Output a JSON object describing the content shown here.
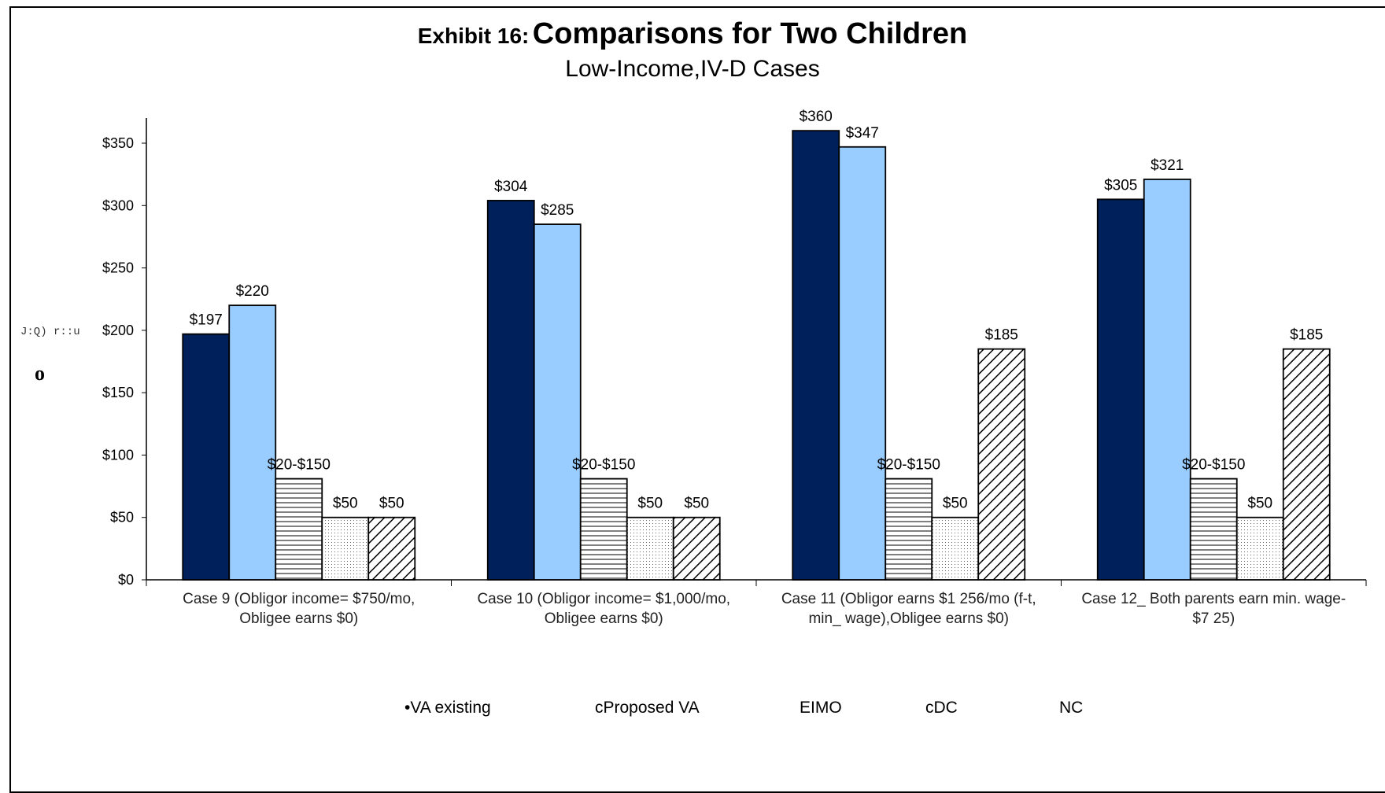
{
  "chart_data": {
    "type": "bar",
    "title_prefix": "Exhibit 16:",
    "title": "Comparisons for Two Children",
    "subtitle": "Low-Income,IV-D Cases",
    "ylabel_fragment": "J:Q) r::u",
    "ylabel_glyph": "o",
    "ylim": [
      0,
      350
    ],
    "yticks": [
      "$0",
      "$50",
      "$100",
      "$150",
      "$200",
      "$250",
      "$300",
      "$350"
    ],
    "categories": [
      [
        "Case  9  (Obligor income= $750/mo,",
        "Obligee earns $0)"
      ],
      [
        "Case  10 (Obligor income= $1,000/mo,",
        "Obligee earns $0)"
      ],
      [
        "Case  11 (Obligor earns $1 256/mo (f-t,",
        "min_ wage),Obligee earns $0)"
      ],
      [
        "Case  12_ Both parents earn min. wage-",
        "$7 25)"
      ]
    ],
    "series": [
      {
        "name": "VA existing",
        "color": "#00205b",
        "pattern": "solid",
        "values": [
          197,
          304,
          360,
          305
        ],
        "labels": [
          "$197",
          "$304",
          "$360",
          "$305"
        ]
      },
      {
        "name": "Proposed VA",
        "color": "#99ccff",
        "pattern": "solid",
        "values": [
          220,
          285,
          347,
          321
        ],
        "labels": [
          "$220",
          "$285",
          "$347",
          "$321"
        ]
      },
      {
        "name": "MO",
        "color": "#ffffff",
        "pattern": "horizontal",
        "values": [
          81,
          81,
          81,
          81
        ],
        "labels": [
          "$20-$150",
          "$20-$150",
          "$20-$150",
          "$20-$150"
        ]
      },
      {
        "name": "DC",
        "color": "#ffffff",
        "pattern": "dots",
        "values": [
          50,
          50,
          50,
          50
        ],
        "labels": [
          "$50",
          "$50",
          "$50",
          "$50"
        ]
      },
      {
        "name": "NC",
        "color": "#ffffff",
        "pattern": "diagonal",
        "values": [
          50,
          50,
          185,
          185
        ],
        "labels": [
          "$50",
          "$50",
          "$185",
          "$185"
        ]
      }
    ],
    "grid": false,
    "legend_position": "bottom"
  },
  "legend": [
    {
      "marker": "•",
      "text": "VA existing"
    },
    {
      "marker": "c",
      "text": "Proposed VA"
    },
    {
      "marker": "EI",
      "text": "MO"
    },
    {
      "marker": "c",
      "text": "DC"
    },
    {
      "marker": "",
      "text": "NC"
    }
  ]
}
